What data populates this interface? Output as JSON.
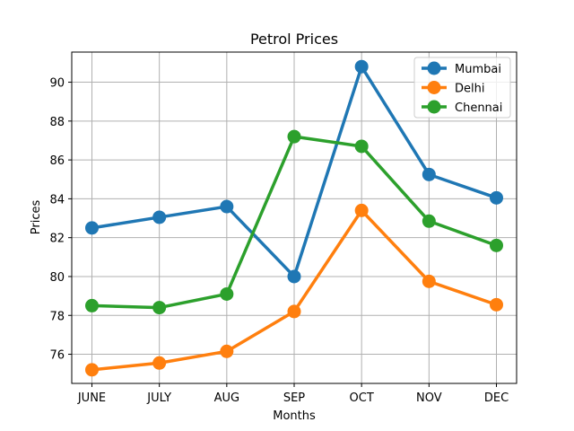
{
  "chart_data": {
    "type": "line",
    "title": "Petrol Prices",
    "xlabel": "Months",
    "ylabel": "Prices",
    "categories": [
      "JUNE",
      "JULY",
      "AUG",
      "SEP",
      "OCT",
      "NOV",
      "DEC"
    ],
    "yticks": [
      76,
      78,
      80,
      82,
      84,
      86,
      88,
      90
    ],
    "ylim": [
      74.5,
      91.55
    ],
    "grid": true,
    "legend_position": "top-right",
    "series": [
      {
        "name": "Mumbai",
        "color": "#1f77b4",
        "values": [
          82.5,
          83.05,
          83.6,
          80.0,
          90.8,
          85.25,
          84.05
        ]
      },
      {
        "name": "Delhi",
        "color": "#ff7f0e",
        "values": [
          75.2,
          75.55,
          76.15,
          78.2,
          83.4,
          79.75,
          78.55
        ]
      },
      {
        "name": "Chennai",
        "color": "#2ca02c",
        "values": [
          78.5,
          78.4,
          79.1,
          87.2,
          86.7,
          82.85,
          81.6
        ]
      }
    ]
  }
}
